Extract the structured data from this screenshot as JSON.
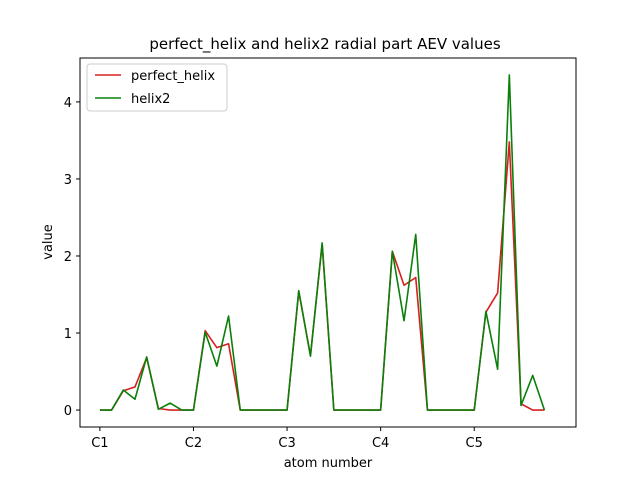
{
  "chart_data": {
    "type": "line",
    "title": "perfect_helix and helix2 radial part AEV values",
    "xlabel": "atom number",
    "ylabel": "value",
    "xlim": [
      -1.7,
      40.7
    ],
    "ylim": [
      -0.22,
      4.57
    ],
    "x_ticks": [
      {
        "pos": 0,
        "label": "C1"
      },
      {
        "pos": 8,
        "label": "C2"
      },
      {
        "pos": 16,
        "label": "C3"
      },
      {
        "pos": 24,
        "label": "C4"
      },
      {
        "pos": 32,
        "label": "C5"
      }
    ],
    "y_ticks": [
      0,
      1,
      2,
      3,
      4
    ],
    "legend": {
      "position": "top-left"
    },
    "series": [
      {
        "name": "perfect_helix",
        "color": "#d62020",
        "values": [
          0,
          0,
          0.25,
          0.3,
          0.68,
          0.02,
          0,
          0,
          0,
          1.03,
          0.81,
          0.86,
          0,
          0,
          0,
          0,
          0,
          1.54,
          0.71,
          2.15,
          0,
          0,
          0,
          0,
          0,
          2.06,
          1.62,
          1.72,
          0,
          0,
          0,
          0,
          0,
          1.27,
          1.52,
          3.48,
          0.08,
          0,
          0
        ]
      },
      {
        "name": "helix2",
        "color": "#0a800a",
        "values": [
          0,
          0,
          0.26,
          0.14,
          0.69,
          0.01,
          0.09,
          0,
          0,
          1.01,
          0.57,
          1.22,
          0,
          0,
          0,
          0,
          0,
          1.55,
          0.7,
          2.17,
          0,
          0,
          0,
          0,
          0,
          2.06,
          1.16,
          2.28,
          0,
          0,
          0,
          0,
          0,
          1.28,
          0.53,
          4.35,
          0.06,
          0.45,
          0
        ]
      }
    ]
  }
}
